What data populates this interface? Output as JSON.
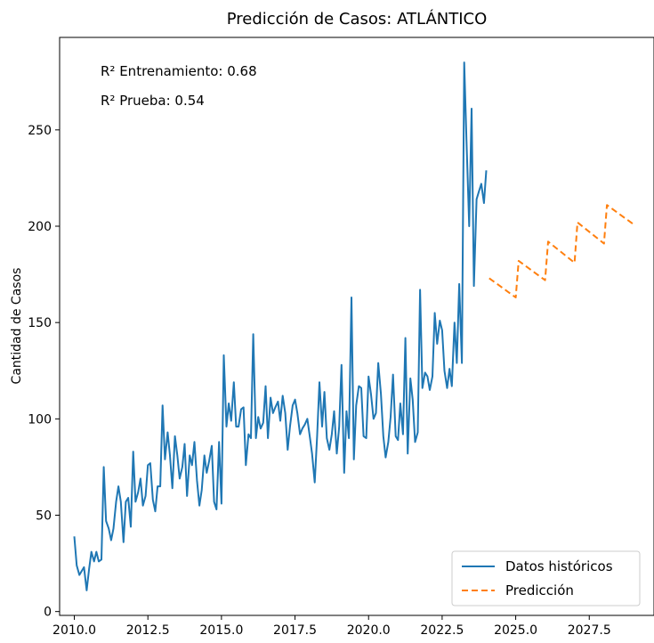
{
  "chart_data": {
    "type": "line",
    "title": "Predicción de Casos: ATLÁNTICO",
    "xlabel": "",
    "ylabel": "Cantidad de Casos",
    "xlim": [
      2009.5,
      2029.7
    ],
    "ylim": [
      -2,
      298
    ],
    "xticks": [
      2010.0,
      2012.5,
      2015.0,
      2017.5,
      2020.0,
      2022.5,
      2025.0,
      2027.5
    ],
    "xtick_labels": [
      "2010.0",
      "2012.5",
      "2015.0",
      "2017.5",
      "2020.0",
      "2022.5",
      "2025.0",
      "2027.5"
    ],
    "yticks": [
      0,
      50,
      100,
      150,
      200,
      250
    ],
    "ytick_labels": [
      "0",
      "50",
      "100",
      "150",
      "200",
      "250"
    ],
    "grid": false,
    "legend_position": "bottom-right",
    "annotations": [
      "R² Entrenamiento: 0.68",
      "R² Prueba: 0.54"
    ],
    "series": [
      {
        "name": "Datos históricos",
        "color": "#1f77b4",
        "style": "solid",
        "x": [
          2010.0,
          2010.08,
          2010.17,
          2010.25,
          2010.33,
          2010.42,
          2010.5,
          2010.58,
          2010.67,
          2010.75,
          2010.83,
          2010.92,
          2011.0,
          2011.08,
          2011.17,
          2011.25,
          2011.33,
          2011.42,
          2011.5,
          2011.58,
          2011.67,
          2011.75,
          2011.83,
          2011.92,
          2012.0,
          2012.08,
          2012.17,
          2012.25,
          2012.33,
          2012.42,
          2012.5,
          2012.58,
          2012.67,
          2012.75,
          2012.83,
          2012.92,
          2013.0,
          2013.08,
          2013.17,
          2013.25,
          2013.33,
          2013.42,
          2013.5,
          2013.58,
          2013.67,
          2013.75,
          2013.83,
          2013.92,
          2014.0,
          2014.08,
          2014.17,
          2014.25,
          2014.33,
          2014.42,
          2014.5,
          2014.58,
          2014.67,
          2014.75,
          2014.83,
          2014.92,
          2015.0,
          2015.08,
          2015.17,
          2015.25,
          2015.33,
          2015.42,
          2015.5,
          2015.58,
          2015.67,
          2015.75,
          2015.83,
          2015.92,
          2016.0,
          2016.08,
          2016.17,
          2016.25,
          2016.33,
          2016.42,
          2016.5,
          2016.58,
          2016.67,
          2016.75,
          2016.83,
          2016.92,
          2017.0,
          2017.08,
          2017.17,
          2017.25,
          2017.33,
          2017.42,
          2017.5,
          2017.58,
          2017.67,
          2017.75,
          2017.83,
          2017.92,
          2018.0,
          2018.08,
          2018.17,
          2018.25,
          2018.33,
          2018.42,
          2018.5,
          2018.58,
          2018.67,
          2018.75,
          2018.83,
          2018.92,
          2019.0,
          2019.08,
          2019.17,
          2019.25,
          2019.33,
          2019.42,
          2019.5,
          2019.58,
          2019.67,
          2019.75,
          2019.83,
          2019.92,
          2020.0,
          2020.08,
          2020.17,
          2020.25,
          2020.33,
          2020.42,
          2020.5,
          2020.58,
          2020.67,
          2020.75,
          2020.83,
          2020.92,
          2021.0,
          2021.08,
          2021.17,
          2021.25,
          2021.33,
          2021.42,
          2021.5,
          2021.58,
          2021.67,
          2021.75,
          2021.83,
          2021.92,
          2022.0,
          2022.08,
          2022.17,
          2022.25,
          2022.33,
          2022.42,
          2022.5,
          2022.58,
          2022.67,
          2022.75,
          2022.83,
          2022.92,
          2023.0,
          2023.08,
          2023.17,
          2023.25,
          2023.33,
          2023.42,
          2023.5,
          2023.58,
          2023.67,
          2023.75,
          2023.83,
          2023.92,
          2024.0
        ],
        "y": [
          39,
          24,
          19,
          21,
          23,
          11,
          22,
          31,
          26,
          31,
          26,
          27,
          75,
          47,
          43,
          37,
          43,
          57,
          65,
          57,
          36,
          57,
          59,
          44,
          83,
          57,
          62,
          69,
          55,
          60,
          76,
          77,
          58,
          52,
          65,
          65,
          107,
          79,
          93,
          81,
          64,
          91,
          81,
          69,
          75,
          87,
          60,
          81,
          76,
          88,
          68,
          55,
          63,
          81,
          72,
          78,
          86,
          57,
          53,
          88,
          56,
          133,
          96,
          108,
          99,
          119,
          96,
          96,
          105,
          106,
          76,
          92,
          90,
          144,
          90,
          101,
          95,
          98,
          117,
          90,
          111,
          103,
          106,
          109,
          99,
          112,
          103,
          84,
          96,
          107,
          110,
          103,
          92,
          95,
          97,
          100,
          91,
          82,
          67,
          91,
          119,
          96,
          114,
          90,
          84,
          92,
          104,
          82,
          96,
          128,
          72,
          104,
          90,
          163,
          79,
          107,
          117,
          116,
          91,
          90,
          122,
          113,
          100,
          103,
          129,
          113,
          91,
          80,
          88,
          101,
          123,
          91,
          89,
          108,
          92,
          142,
          82,
          121,
          110,
          88,
          93,
          167,
          116,
          124,
          122,
          115,
          122,
          155,
          139,
          151,
          146,
          125,
          116,
          126,
          117,
          150,
          129,
          170,
          129,
          285,
          244,
          200,
          261,
          169,
          214,
          218,
          222,
          212,
          229
        ]
      },
      {
        "name": "Predicción",
        "color": "#ff7f0e",
        "style": "dashed",
        "x": [
          2024.1,
          2025.0,
          2025.1,
          2026.0,
          2026.1,
          2027.0,
          2027.1,
          2028.0,
          2028.1,
          2029.0
        ],
        "y": [
          173,
          163,
          182,
          172,
          192,
          181,
          202,
          191,
          211,
          201
        ]
      }
    ]
  }
}
